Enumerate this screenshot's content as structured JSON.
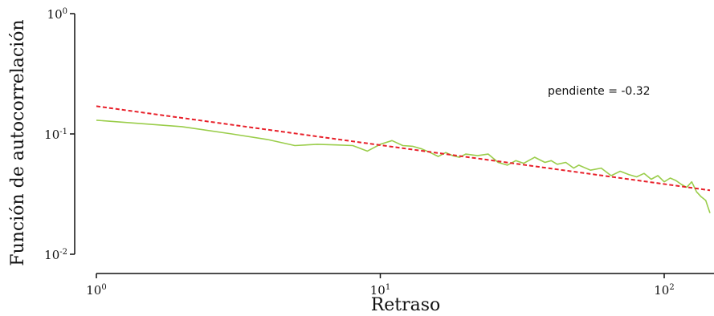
{
  "chart_data": {
    "type": "line",
    "xlabel": "Retraso",
    "ylabel": "Función de autocorrelación",
    "xscale": "log",
    "yscale": "log",
    "xlim": [
      0.95,
      145
    ],
    "ylim": [
      0.01,
      1
    ],
    "grid": false,
    "x_ticks": [
      {
        "value": 1,
        "base": "10",
        "exp": "0"
      },
      {
        "value": 10,
        "base": "10",
        "exp": "1"
      },
      {
        "value": 100,
        "base": "10",
        "exp": "2"
      }
    ],
    "y_ticks": [
      {
        "value": 1,
        "base": "10",
        "exp": "0"
      },
      {
        "value": 0.1,
        "base": "10",
        "exp": "-1"
      },
      {
        "value": 0.01,
        "base": "10",
        "exp": "-2"
      }
    ],
    "annotation": "pendiente = -0.32",
    "series": [
      {
        "style": "solid",
        "color": "#9acd4a",
        "x": [
          1,
          2,
          3,
          4,
          5,
          6,
          7,
          8,
          9,
          10,
          11,
          12,
          13,
          14,
          15,
          16,
          17,
          18,
          19,
          20,
          22,
          24,
          26,
          28,
          30,
          32,
          35,
          38,
          40,
          42,
          45,
          48,
          50,
          55,
          60,
          65,
          70,
          75,
          80,
          85,
          90,
          95,
          100,
          105,
          110,
          115,
          120,
          125,
          130,
          135,
          140,
          145
        ],
        "y": [
          0.13,
          0.115,
          0.1,
          0.09,
          0.08,
          0.082,
          0.081,
          0.08,
          0.072,
          0.082,
          0.088,
          0.08,
          0.079,
          0.075,
          0.07,
          0.065,
          0.07,
          0.066,
          0.064,
          0.068,
          0.066,
          0.068,
          0.058,
          0.055,
          0.06,
          0.057,
          0.064,
          0.058,
          0.06,
          0.056,
          0.058,
          0.052,
          0.055,
          0.05,
          0.052,
          0.045,
          0.049,
          0.046,
          0.044,
          0.047,
          0.042,
          0.045,
          0.04,
          0.043,
          0.041,
          0.038,
          0.036,
          0.04,
          0.033,
          0.03,
          0.028,
          0.022
        ]
      },
      {
        "style": "dashed",
        "color": "#e8202a",
        "x": [
          1,
          145
        ],
        "y": [
          0.17,
          0.034
        ]
      }
    ]
  }
}
